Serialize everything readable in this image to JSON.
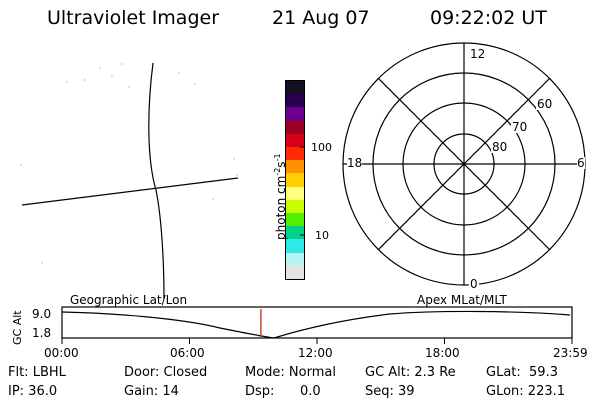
{
  "header": {
    "instrument": "Ultraviolet Imager",
    "date": "21 Aug 07",
    "time": "09:22:02 UT"
  },
  "colorbar": {
    "unit_label": "photon cm",
    "unit_exp1": "-2",
    "unit_s": "s",
    "unit_exp2": "-1",
    "tick_high": "100",
    "tick_low": "10",
    "colors": [
      "#141023",
      "#29004d",
      "#6b0090",
      "#9c0020",
      "#d6001c",
      "#ff2a00",
      "#ff9000",
      "#ffd000",
      "#ffff80",
      "#c8ff00",
      "#52f000",
      "#00d28c",
      "#30e8e8",
      "#b8f4f4",
      "#e4e4e4"
    ]
  },
  "polar_plot": {
    "hour_top": "12",
    "hour_left": "18",
    "hour_right": "6",
    "hour_bottom": "0",
    "lat_60": "60",
    "lat_70": "70",
    "lat_80": "80"
  },
  "timeline": {
    "y_axis_label": "GC Alt",
    "y_max": "9.0",
    "y_min": "1.8",
    "left_caption": "Geographic Lat/Lon",
    "right_caption": "Apex MLat/MLT",
    "x_ticks": [
      "00:00",
      "06:00",
      "12:00",
      "18:00",
      "23:59"
    ],
    "current_time_fraction": 0.39
  },
  "status": {
    "flt": "Flt: LBHL",
    "ip": "IP: 36.0",
    "door": "Door: Closed",
    "gain": "Gain: 14",
    "mode": "Mode: Normal",
    "dsp_label": "Dsp:",
    "dsp_value": "0.0",
    "gc_alt": "GC Alt: 2.3 Re",
    "seq": "Seq: 39",
    "glat": "GLat:  59.3",
    "glon": "GLon: 223.1"
  }
}
